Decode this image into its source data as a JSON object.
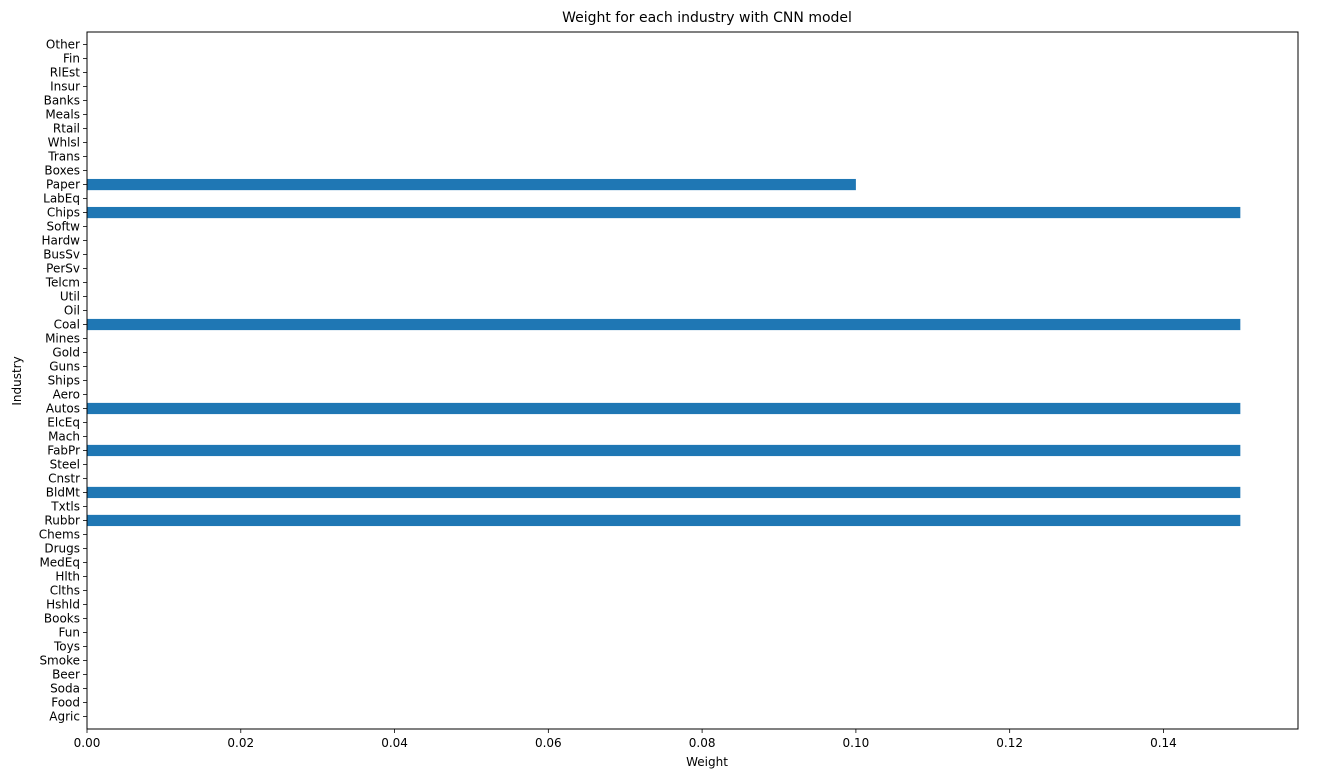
{
  "chart_data": {
    "type": "bar",
    "orientation": "horizontal",
    "title": "Weight for each industry with CNN model",
    "xlabel": "Weight",
    "ylabel": "Industry",
    "xlim": [
      0,
      0.1575
    ],
    "xticks": [
      0.0,
      0.02,
      0.04,
      0.06,
      0.08,
      0.1,
      0.12,
      0.14
    ],
    "xtick_labels": [
      "0.00",
      "0.02",
      "0.04",
      "0.06",
      "0.08",
      "0.10",
      "0.12",
      "0.14"
    ],
    "grid": false,
    "bar_color": "#1f77b4",
    "categories": [
      "Agric",
      "Food",
      "Soda",
      "Beer",
      "Smoke",
      "Toys",
      "Fun",
      "Books",
      "Hshld",
      "Clths",
      "Hlth",
      "MedEq",
      "Drugs",
      "Chems",
      "Rubbr",
      "Txtls",
      "BldMt",
      "Cnstr",
      "Steel",
      "FabPr",
      "Mach",
      "ElcEq",
      "Autos",
      "Aero",
      "Ships",
      "Guns",
      "Gold",
      "Mines",
      "Coal",
      "Oil",
      "Util",
      "Telcm",
      "PerSv",
      "BusSv",
      "Hardw",
      "Softw",
      "Chips",
      "LabEq",
      "Paper",
      "Boxes",
      "Trans",
      "Whlsl",
      "Rtail",
      "Meals",
      "Banks",
      "Insur",
      "RlEst",
      "Fin",
      "Other"
    ],
    "values": [
      0,
      0,
      0,
      0,
      0,
      0,
      0,
      0,
      0,
      0,
      0,
      0,
      0,
      0,
      0.15,
      0,
      0.15,
      0,
      0,
      0.15,
      0,
      0,
      0.15,
      0,
      0,
      0,
      0,
      0,
      0.15,
      0,
      0,
      0,
      0,
      0,
      0,
      0,
      0.15,
      0,
      0.1,
      0,
      0,
      0,
      0,
      0,
      0,
      0,
      0,
      0,
      0
    ]
  }
}
